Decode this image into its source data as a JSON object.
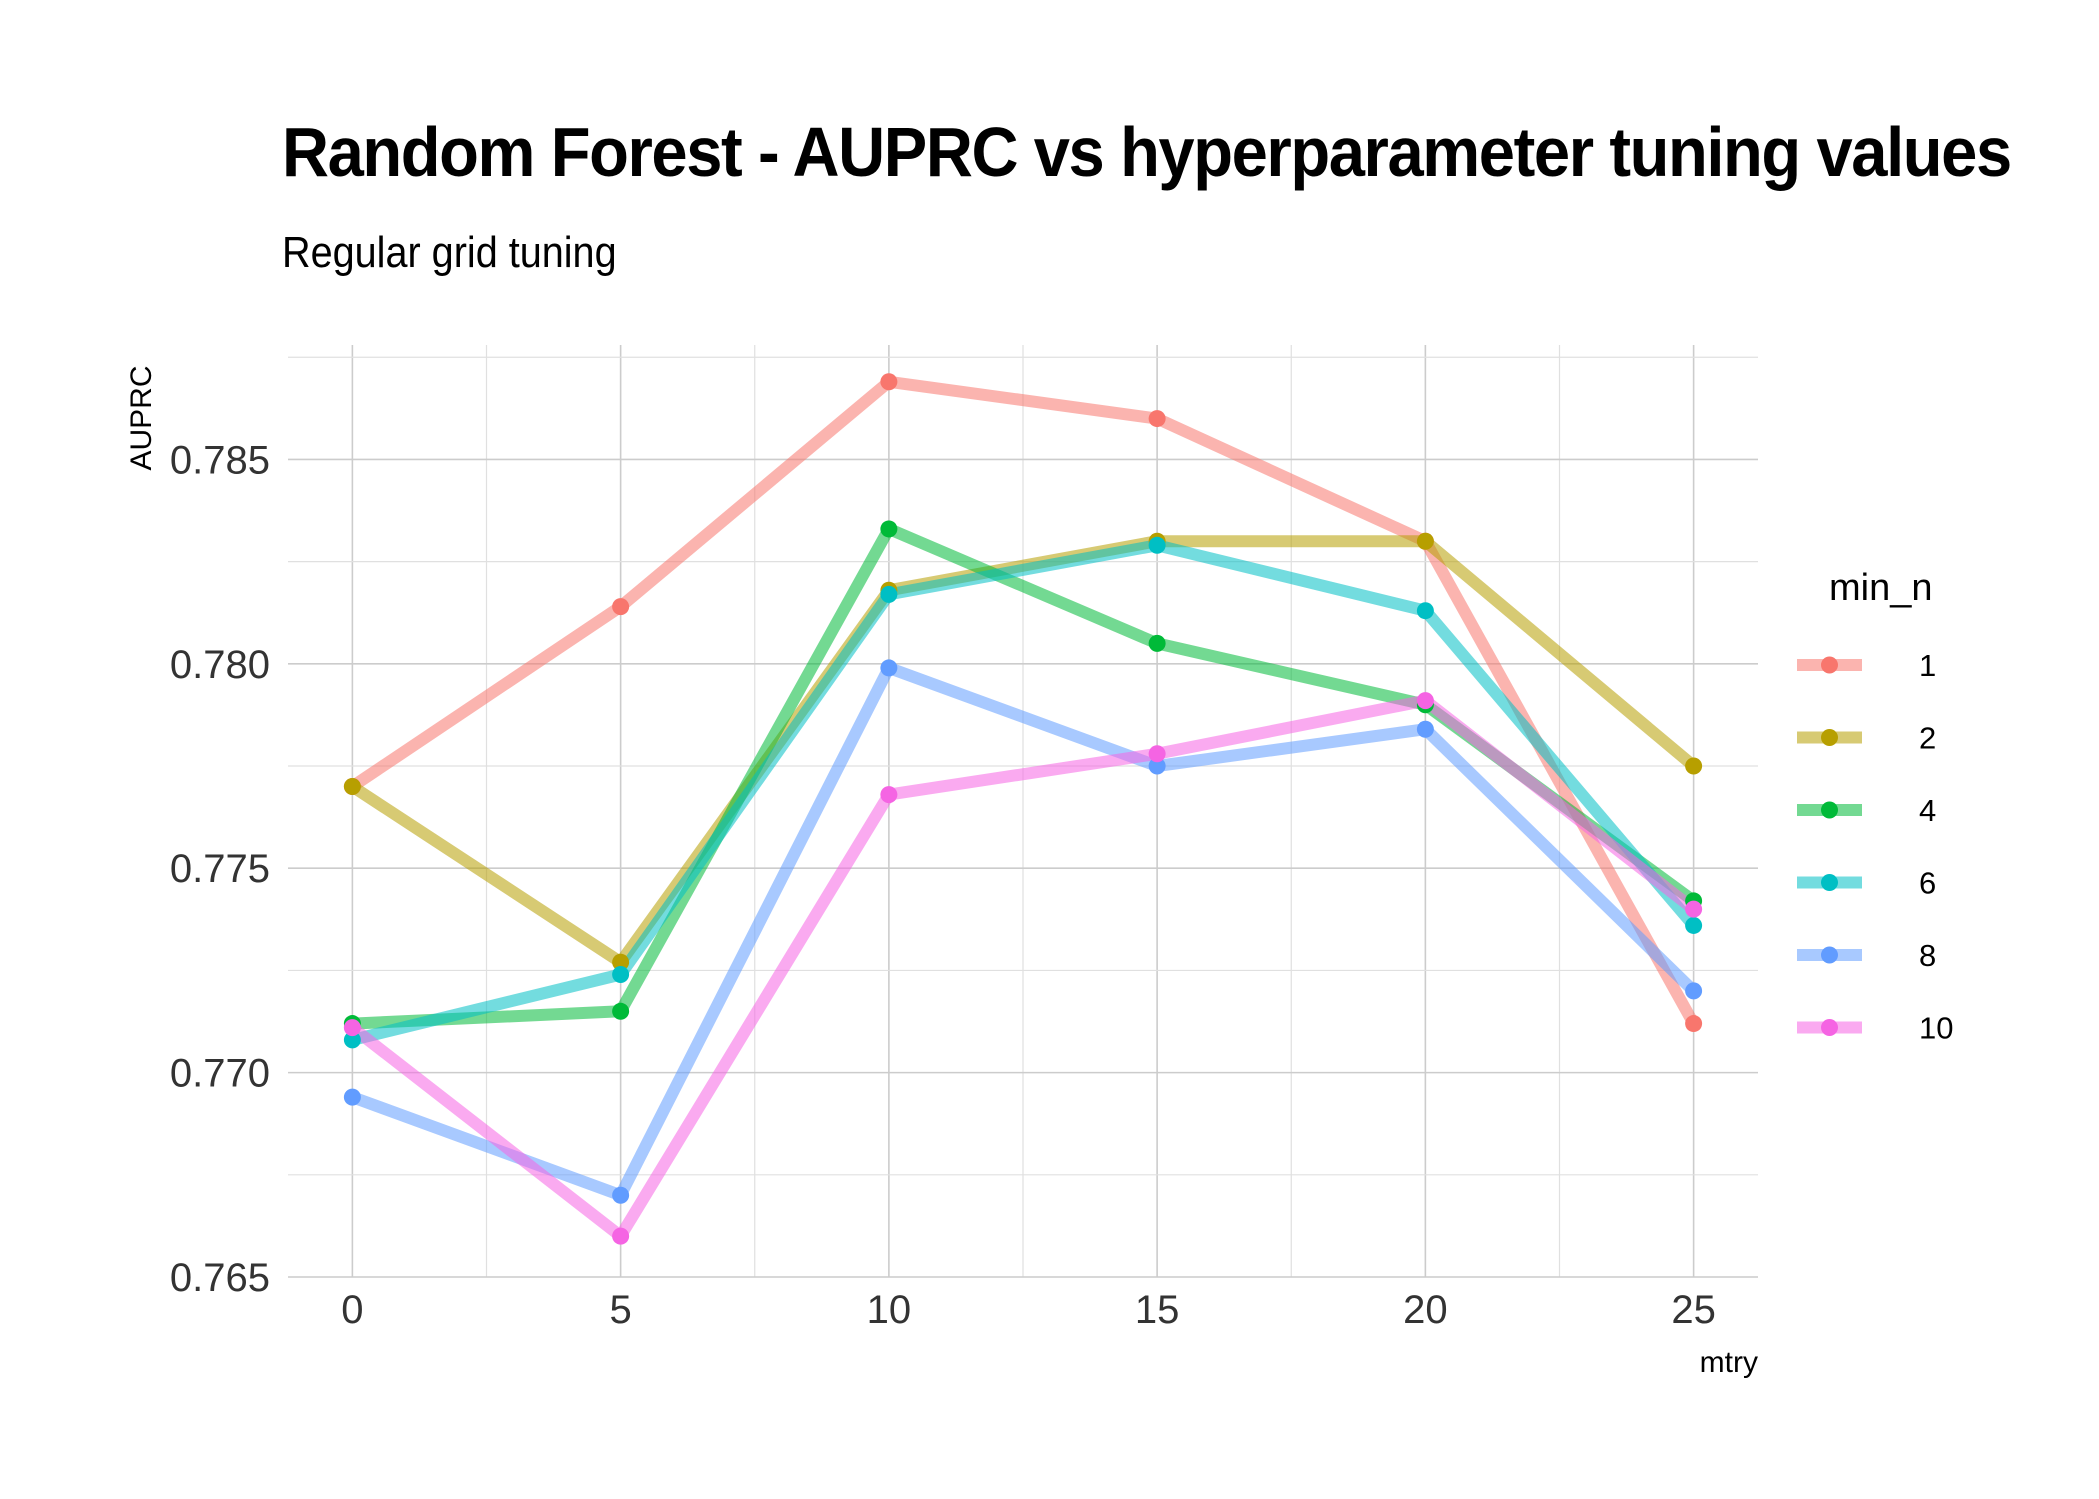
{
  "chart_data": {
    "type": "line",
    "title": "Random Forest - AUPRC vs hyperparameter tuning values",
    "subtitle": "Regular grid tuning",
    "xlabel": "mtry",
    "ylabel": "AUPRC",
    "x": [
      0,
      5,
      10,
      15,
      20,
      25
    ],
    "xlim": [
      -1.2,
      26.2
    ],
    "ylim": [
      0.765,
      0.7878
    ],
    "xticks": [
      "0",
      "5",
      "10",
      "15",
      "20",
      "25"
    ],
    "yticks": [
      "0.765",
      "0.770",
      "0.775",
      "0.780",
      "0.785"
    ],
    "grid": true,
    "legend": {
      "title": "min_n",
      "position": "right"
    },
    "series": [
      {
        "name": "1",
        "color": "#F8766D",
        "values": [
          0.777,
          0.7814,
          0.7869,
          0.786,
          0.783,
          0.7712
        ]
      },
      {
        "name": "2",
        "color": "#B79F00",
        "values": [
          0.777,
          0.7727,
          0.7818,
          0.783,
          0.783,
          0.7775
        ]
      },
      {
        "name": "4",
        "color": "#00BA38",
        "values": [
          0.7712,
          0.7715,
          0.7833,
          0.7805,
          0.779,
          0.7742
        ]
      },
      {
        "name": "6",
        "color": "#00BFC4",
        "values": [
          0.7708,
          0.7724,
          0.7817,
          0.7829,
          0.7813,
          0.7736
        ]
      },
      {
        "name": "8",
        "color": "#619CFF",
        "values": [
          0.7694,
          0.767,
          0.7799,
          0.7775,
          0.7784,
          0.772
        ]
      },
      {
        "name": "10",
        "color": "#F564E3",
        "values": [
          0.7711,
          0.766,
          0.7768,
          0.7778,
          0.7791,
          0.774
        ]
      }
    ]
  }
}
